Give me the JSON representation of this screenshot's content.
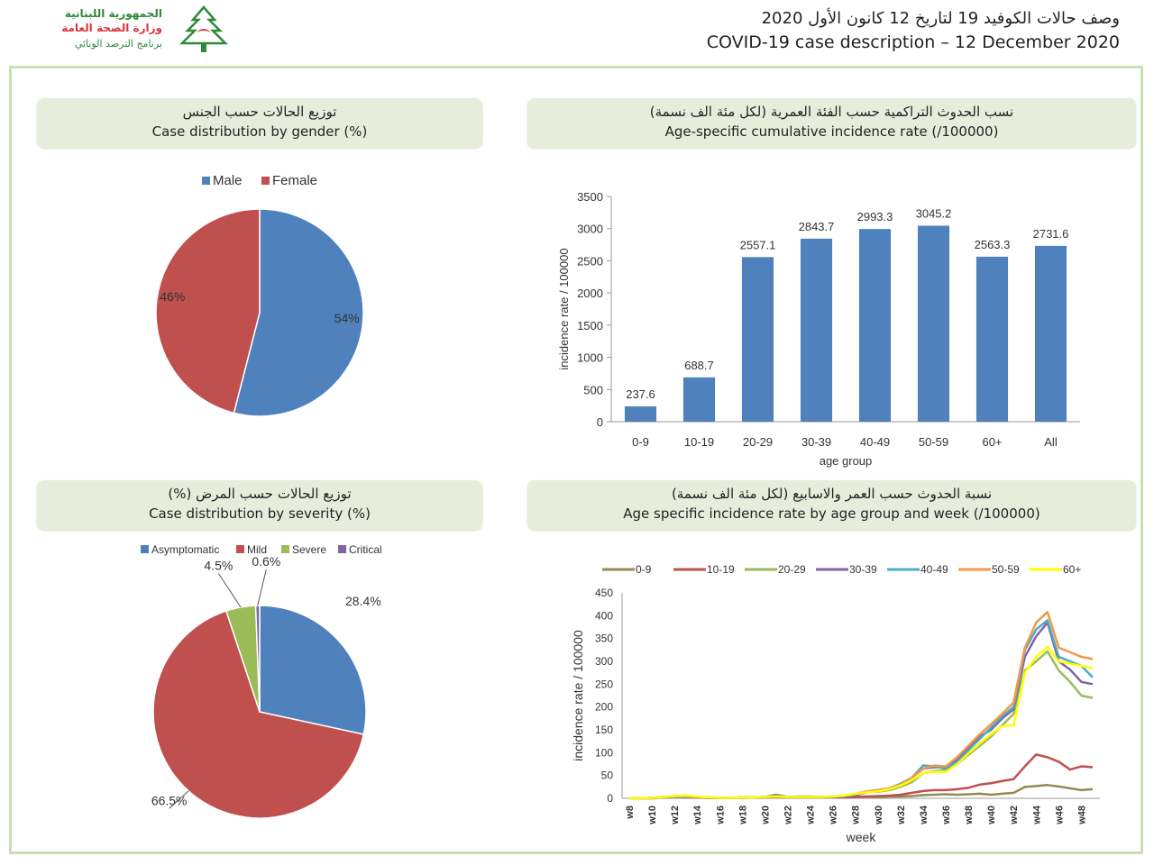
{
  "header": {
    "logo_line1": "الجمهورية اللبنانية",
    "logo_line2": "وزارة الصحة العامة",
    "logo_line3": "برنامج الترصد الوبائي",
    "title_ar": "وصف حالات الكوفيد 19 لتاريخ 12 كانون الأول 2020",
    "title_en": "COVID-19 case description – 12 December 2020",
    "accent_green": "#2e8b3a",
    "accent_red": "#d9363e"
  },
  "panels": {
    "gender": {
      "title_ar": "توزيع الحالات حسب الجنس",
      "title_en": "Case distribution by gender (%)"
    },
    "age_rate": {
      "title_ar": "نسب الحدوث التراكمية حسب الفئة العمرية (لكل مئة الف نسمة)",
      "title_en": "Age-specific cumulative incidence rate (/100000)"
    },
    "severity": {
      "title_ar": "توزيع الحالات حسب المرض (%)",
      "title_en": "Case distribution by severity (%)"
    },
    "weekly": {
      "title_ar": "نسبة الحدوث حسب العمر والاسابيع (لكل مئة الف نسمة)",
      "title_en": "Age specific incidence rate by age group and week (/100000)"
    }
  },
  "chart_data": [
    {
      "type": "pie",
      "title": "Case distribution by gender (%)",
      "categories": [
        "Male",
        "Female"
      ],
      "values": [
        54,
        46
      ],
      "labels": [
        "54%",
        "46%"
      ],
      "colors": [
        "#4f81bd",
        "#c0504d"
      ],
      "legend": "top"
    },
    {
      "type": "bar",
      "title": "Age-specific cumulative incidence rate (/100000)",
      "categories": [
        "0-9",
        "10-19",
        "20-29",
        "30-39",
        "40-49",
        "50-59",
        "60+",
        "All"
      ],
      "values": [
        237.6,
        688.7,
        2557.1,
        2843.7,
        2993.3,
        3045.2,
        2563.3,
        2731.6
      ],
      "xlabel": "age group",
      "ylabel": "incidence rate / 100000",
      "ylim": [
        0,
        3500
      ],
      "yticks": [
        0,
        500,
        1000,
        1500,
        2000,
        2500,
        3000,
        3500
      ],
      "color": "#4f81bd"
    },
    {
      "type": "pie",
      "title": "Case distribution by severity (%)",
      "categories": [
        "Asymptomatic",
        "Mild",
        "Severe",
        "Critical"
      ],
      "values": [
        28.4,
        66.5,
        4.5,
        0.6
      ],
      "labels": [
        "28.4%",
        "66.5%",
        "4.5%",
        "0.6%"
      ],
      "colors": [
        "#4f81bd",
        "#c0504d",
        "#9bbb59",
        "#8064a2"
      ],
      "legend": "top"
    },
    {
      "type": "line",
      "title": "Age specific incidence rate by age group and week (/100000)",
      "xlabel": "week",
      "ylabel": "incidence rate / 100000",
      "ylim": [
        0,
        450
      ],
      "yticks": [
        0,
        50,
        100,
        150,
        200,
        250,
        300,
        350,
        400,
        450
      ],
      "x": [
        "w8",
        "w9",
        "w10",
        "w11",
        "w12",
        "w13",
        "w14",
        "w15",
        "w16",
        "w17",
        "w18",
        "w19",
        "w20",
        "w21",
        "w22",
        "w23",
        "w24",
        "w25",
        "w26",
        "w27",
        "w28",
        "w29",
        "w30",
        "w31",
        "w32",
        "w33",
        "w34",
        "w35",
        "w36",
        "w37",
        "w38",
        "w39",
        "w40",
        "w41",
        "w42",
        "w43",
        "w44",
        "w45",
        "w46",
        "w47",
        "w48",
        "w49"
      ],
      "xtick_labels": [
        "w8",
        "w10",
        "w12",
        "w14",
        "w16",
        "w18",
        "w20",
        "w22",
        "w24",
        "w26",
        "w28",
        "w30",
        "w32",
        "w34",
        "w36",
        "w38",
        "w40",
        "w42",
        "w44",
        "w46",
        "w48"
      ],
      "legend": "top",
      "series": [
        {
          "name": "0-9",
          "color": "#948a54",
          "values": [
            0,
            0,
            1,
            2,
            3,
            4,
            2,
            1,
            1,
            1,
            2,
            2,
            3,
            8,
            3,
            4,
            4,
            3,
            3,
            3,
            3,
            4,
            3,
            4,
            4,
            5,
            7,
            8,
            9,
            8,
            9,
            10,
            8,
            10,
            12,
            25,
            27,
            29,
            26,
            22,
            18,
            20
          ]
        },
        {
          "name": "10-19",
          "color": "#c0504d",
          "values": [
            0,
            0,
            0,
            2,
            3,
            3,
            2,
            1,
            1,
            1,
            1,
            2,
            2,
            3,
            3,
            3,
            3,
            3,
            3,
            2,
            3,
            4,
            5,
            6,
            8,
            12,
            16,
            18,
            18,
            20,
            23,
            30,
            33,
            38,
            42,
            70,
            96,
            90,
            80,
            63,
            70,
            68
          ]
        },
        {
          "name": "20-29",
          "color": "#9bbb59",
          "values": [
            0,
            0,
            1,
            3,
            5,
            6,
            3,
            2,
            1,
            1,
            2,
            2,
            3,
            5,
            3,
            3,
            3,
            3,
            4,
            5,
            8,
            14,
            14,
            18,
            25,
            35,
            55,
            60,
            62,
            75,
            95,
            115,
            135,
            160,
            185,
            280,
            300,
            322,
            280,
            255,
            225,
            220
          ]
        },
        {
          "name": "30-39",
          "color": "#8064a2",
          "values": [
            0,
            0,
            1,
            3,
            4,
            4,
            3,
            1,
            1,
            1,
            2,
            2,
            3,
            4,
            3,
            3,
            3,
            3,
            3,
            5,
            7,
            13,
            16,
            20,
            28,
            45,
            65,
            68,
            68,
            85,
            110,
            135,
            150,
            175,
            195,
            310,
            355,
            385,
            300,
            282,
            255,
            250
          ]
        },
        {
          "name": "40-49",
          "color": "#4bacc6",
          "values": [
            0,
            0,
            1,
            2,
            3,
            4,
            3,
            1,
            1,
            1,
            2,
            2,
            3,
            4,
            3,
            3,
            3,
            3,
            3,
            5,
            8,
            15,
            18,
            22,
            32,
            45,
            72,
            70,
            65,
            80,
            105,
            130,
            155,
            180,
            200,
            325,
            370,
            390,
            310,
            300,
            290,
            265
          ]
        },
        {
          "name": "50-59",
          "color": "#f79646",
          "values": [
            0,
            0,
            1,
            3,
            4,
            5,
            3,
            2,
            1,
            1,
            2,
            2,
            3,
            4,
            3,
            3,
            3,
            3,
            4,
            6,
            10,
            15,
            18,
            22,
            30,
            45,
            65,
            72,
            70,
            90,
            115,
            140,
            162,
            185,
            210,
            330,
            385,
            408,
            330,
            320,
            310,
            305
          ]
        },
        {
          "name": "60+",
          "color": "#ffff00",
          "values": [
            0,
            0,
            1,
            3,
            5,
            6,
            4,
            2,
            1,
            1,
            2,
            2,
            3,
            4,
            3,
            3,
            3,
            3,
            4,
            6,
            10,
            13,
            15,
            20,
            28,
            40,
            55,
            58,
            58,
            75,
            98,
            120,
            140,
            158,
            160,
            275,
            310,
            332,
            300,
            295,
            290,
            285
          ]
        }
      ]
    }
  ]
}
